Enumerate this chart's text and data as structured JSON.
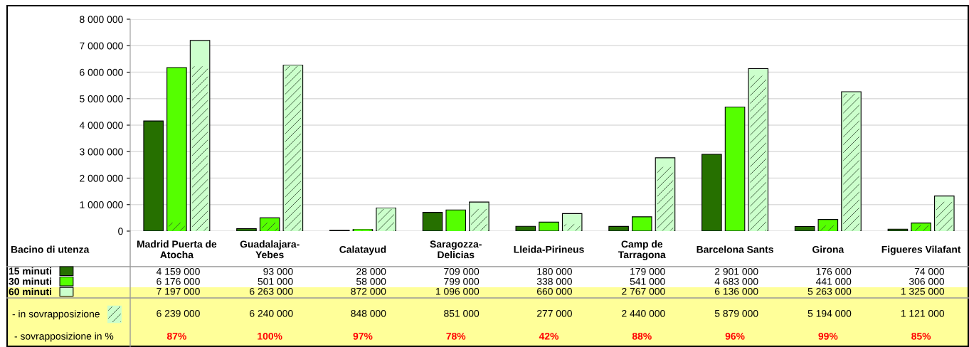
{
  "chart_data": {
    "type": "bar",
    "xlabel": "Bacino di utenza",
    "categories": [
      "Madrid Puerta de\nAtocha",
      "Guadalajara-\nYebes",
      "Calatayud",
      "Saragozza-\nDelicias",
      "Lleida-Pirineus",
      "Camp de\nTarragona",
      "Barcelona Sants",
      "Girona",
      "Figueres Vilafant"
    ],
    "series": [
      {
        "name": "15 minuti",
        "color": "#267000",
        "values": [
          4159000,
          93000,
          28000,
          709000,
          180000,
          179000,
          2901000,
          176000,
          74000
        ],
        "value_labels": [
          "4 159 000",
          "93 000",
          "28 000",
          "709 000",
          "180 000",
          "179 000",
          "2 901 000",
          "176 000",
          "74 000"
        ]
      },
      {
        "name": "30 minuti",
        "color": "#55ff00",
        "values": [
          6176000,
          501000,
          58000,
          799000,
          338000,
          541000,
          4683000,
          441000,
          306000
        ],
        "value_labels": [
          "6 176 000",
          "501 000",
          "58 000",
          "799 000",
          "338 000",
          "541 000",
          "4 683 000",
          "441 000",
          "306 000"
        ]
      },
      {
        "name": "60 minuti",
        "color": "#ccffcc",
        "values": [
          7197000,
          6263000,
          872000,
          1096000,
          660000,
          2767000,
          6136000,
          5263000,
          1325000
        ],
        "value_labels": [
          "7 197 000",
          "6 263 000",
          "872 000",
          "1 096 000",
          "660 000",
          "2 767 000",
          "6 136 000",
          "5 263 000",
          "1 325 000"
        ]
      },
      {
        "name": "- in sovrapposizione",
        "color": "#ccffcc",
        "values": [
          6239000,
          6240000,
          848000,
          851000,
          277000,
          2440000,
          5879000,
          5194000,
          1121000
        ],
        "value_labels": [
          "6 239 000",
          "6 240 000",
          "848 000",
          "851 000",
          "277 000",
          "2 440 000",
          "5 879 000",
          "5 194 000",
          "1 121 000"
        ]
      },
      {
        "color": "#55ff00",
        "values": [
          340000,
          340000,
          50000,
          20000,
          null,
          null,
          null,
          220000,
          230000
        ]
      }
    ],
    "ylim": [
      0,
      8000000
    ],
    "yticks": [
      {
        "value": 0,
        "label": "0"
      },
      {
        "value": 1000000,
        "label": "1 000 000"
      },
      {
        "value": 2000000,
        "label": "2 000 000"
      },
      {
        "value": 3000000,
        "label": "3 000 000"
      },
      {
        "value": 4000000,
        "label": "4 000 000"
      },
      {
        "value": 5000000,
        "label": "5 000 000"
      },
      {
        "value": 6000000,
        "label": "6 000 000"
      },
      {
        "value": 7000000,
        "label": "7 000 000"
      },
      {
        "value": 8000000,
        "label": "8 000 000"
      }
    ],
    "grid": "y",
    "legend": "bottom left",
    "annotations": [
      "- sovrapposizione in %",
      "87%",
      "100%",
      "97%",
      "78%",
      "42%",
      "88%",
      "96%",
      "99%",
      "85%"
    ]
  }
}
